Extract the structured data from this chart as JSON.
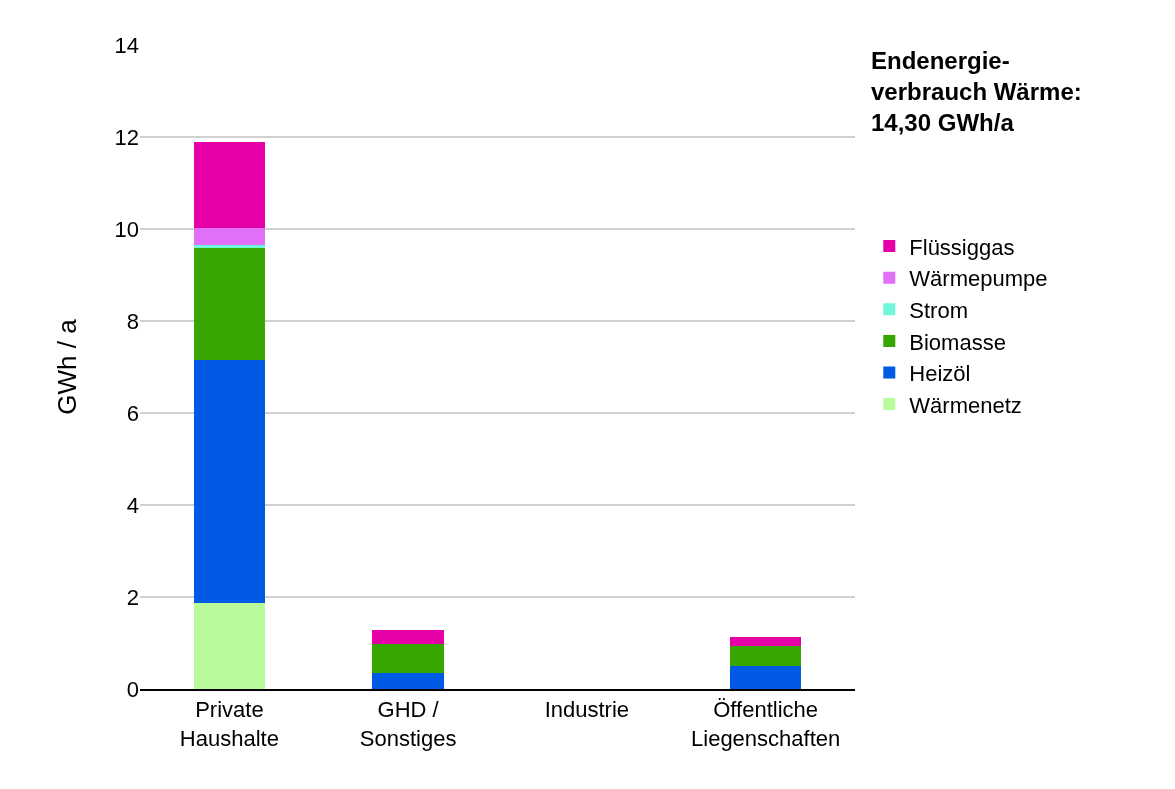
{
  "chart_data": {
    "type": "bar",
    "stacked": true,
    "ylabel": "GWh / a",
    "categories": [
      "Private\nHaushalte",
      "GHD /\nSonstiges",
      "Industrie",
      "Öffentliche\nLiegenschaften"
    ],
    "series": [
      {
        "name": "Wärmenetz",
        "color": "#b9fa9a",
        "values": [
          1.87,
          0,
          0,
          0
        ]
      },
      {
        "name": "Heizöl",
        "color": "#005ae3",
        "values": [
          5.28,
          0.35,
          0,
          0.5
        ]
      },
      {
        "name": "Biomasse",
        "color": "#38a600",
        "values": [
          2.43,
          0.63,
          0,
          0.44
        ]
      },
      {
        "name": "Strom",
        "color": "#6ff7d8",
        "values": [
          0.08,
          0,
          0,
          0
        ]
      },
      {
        "name": "Wärmepumpe",
        "color": "#e070f8",
        "values": [
          0.36,
          0,
          0,
          0
        ]
      },
      {
        "name": "Flüssiggas",
        "color": "#e600a8",
        "values": [
          1.87,
          0.3,
          0,
          0.19
        ]
      }
    ],
    "ylim": [
      0,
      14
    ],
    "yticks": [
      0,
      2,
      4,
      6,
      8,
      10,
      12,
      14
    ],
    "grid": "y",
    "legend": "right",
    "annotations": [
      "Endenergie-\nverbrauch Wärme:\n14,30 GWh/a"
    ]
  }
}
